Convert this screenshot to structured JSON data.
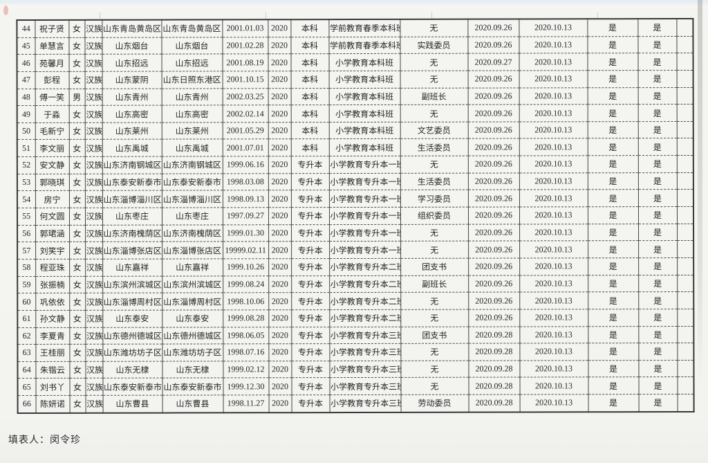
{
  "document": {
    "footer": {
      "filled_by_label": "填表人：闵令珍"
    },
    "table": {
      "rows": [
        [
          "44",
          "祝子贤",
          "女",
          "汉族",
          "山东青岛黄岛区",
          "山东青岛黄岛区",
          "2001.01.03",
          "2020",
          "本科",
          "学前教育春季本科班",
          "无",
          "2020.09.26",
          "2020.10.13",
          "是",
          "是",
          ""
        ],
        [
          "45",
          "单慧言",
          "女",
          "汉族",
          "山东烟台",
          "山东烟台",
          "2001.02.28",
          "2020",
          "本科",
          "学前教育春季本科班",
          "实践委员",
          "2020.09.26",
          "2020.10.13",
          "是",
          "是",
          ""
        ],
        [
          "46",
          "苑馨月",
          "女",
          "汉族",
          "山东招远",
          "山东招远",
          "2001.08.19",
          "2020",
          "本科",
          "小学教育本科班",
          "无",
          "2020.09.27",
          "2020.10.13",
          "是",
          "是",
          ""
        ],
        [
          "47",
          "彭程",
          "女",
          "汉族",
          "山东蒙阴",
          "山东日照东港区",
          "2001.10.15",
          "2020",
          "本科",
          "小学教育本科班",
          "无",
          "2020.09.26",
          "2020.10.13",
          "是",
          "是",
          ""
        ],
        [
          "48",
          "傅一笑",
          "男",
          "汉族",
          "山东青州",
          "山东青州",
          "2002.03.25",
          "2020",
          "本科",
          "小学教育本科班",
          "副班长",
          "2020.09.26",
          "2020.10.13",
          "是",
          "是",
          ""
        ],
        [
          "49",
          "于淼",
          "女",
          "汉族",
          "山东高密",
          "山东高密",
          "2002.02.14",
          "2020",
          "本科",
          "小学教育本科班",
          "无",
          "2020.09.26",
          "2020.10.13",
          "是",
          "是",
          ""
        ],
        [
          "50",
          "毛新宁",
          "女",
          "汉族",
          "山东莱州",
          "山东莱州",
          "2001.05.29",
          "2020",
          "本科",
          "小学教育本科班",
          "文艺委员",
          "2020.09.26",
          "2020.10.13",
          "是",
          "是",
          ""
        ],
        [
          "51",
          "李文丽",
          "女",
          "汉族",
          "山东禹城",
          "山东禹城",
          "2001.07.01",
          "2020",
          "本科",
          "小学教育本科班",
          "生活委员",
          "2020.09.26",
          "2020.10.13",
          "是",
          "是",
          ""
        ],
        [
          "52",
          "安文静",
          "女",
          "汉族",
          "山东济南钢城区",
          "山东济南钢城区",
          "1999.06.16",
          "2020",
          "专升本",
          "小学教育专升本一班",
          "无",
          "2020.09.26",
          "2020.10.13",
          "是",
          "是",
          ""
        ],
        [
          "53",
          "郭晓琪",
          "女",
          "汉族",
          "山东泰安新泰市",
          "山东泰安新泰市",
          "1998.03.08",
          "2020",
          "专升本",
          "小学教育专升本一班",
          "生活委员",
          "2020.09.26",
          "2020.10.13",
          "是",
          "是",
          ""
        ],
        [
          "54",
          "房宁",
          "女",
          "汉族",
          "山东淄博淄川区",
          "山东淄博淄川区",
          "1998.09.13",
          "2020",
          "专升本",
          "小学教育专升本一班",
          "学习委员",
          "2020.09.26",
          "2020.10.13",
          "是",
          "是",
          ""
        ],
        [
          "55",
          "何文圆",
          "女",
          "汉族",
          "山东枣庄",
          "山东枣庄",
          "1997.09.27",
          "2020",
          "专升本",
          "小学教育专升本一班",
          "组织委员",
          "2020.09.26",
          "2020.10.13",
          "是",
          "是",
          ""
        ],
        [
          "56",
          "郭珺涵",
          "女",
          "汉族",
          "山东济南槐荫区",
          "山东济南槐荫区",
          "1999.01.30",
          "2020",
          "专升本",
          "小学教育专升本一班",
          "无",
          "2020.09.26",
          "2020.10.13",
          "是",
          "是",
          ""
        ],
        [
          "57",
          "刘笑宇",
          "女",
          "汉族",
          "山东淄博张店区",
          "山东淄博张店区",
          "19999.02.11",
          "2020",
          "专升本",
          "小学教育专升本一班",
          "无",
          "2020.09.26",
          "2020.10.13",
          "是",
          "是",
          ""
        ],
        [
          "58",
          "程亚珠",
          "女",
          "汉族",
          "山东嘉祥",
          "山东嘉祥",
          "1999.10.26",
          "2020",
          "专升本",
          "小学教育专升本二班",
          "团支书",
          "2020.09.26",
          "2020.10.13",
          "是",
          "是",
          ""
        ],
        [
          "59",
          "张振楠",
          "女",
          "汉族",
          "山东滨州滨城区",
          "山东滨州滨城区",
          "1999.08.24",
          "2020",
          "专升本",
          "小学教育专升本二班",
          "副班长",
          "2020.09.26",
          "2020.10.13",
          "是",
          "是",
          ""
        ],
        [
          "60",
          "巩依依",
          "女",
          "汉族",
          "山东淄博周村区",
          "山东淄博周村区",
          "1998.10.06",
          "2020",
          "专升本",
          "小学教育专升本二班",
          "无",
          "2020.09.26",
          "2020.10.13",
          "是",
          "是",
          ""
        ],
        [
          "61",
          "孙文静",
          "女",
          "汉族",
          "山东泰安",
          "山东泰安",
          "1999.08.28",
          "2020",
          "专升本",
          "小学教育专升本二班",
          "无",
          "2020.09.26",
          "2020.10.13",
          "是",
          "是",
          ""
        ],
        [
          "62",
          "李夏青",
          "女",
          "汉族",
          "山东德州德城区",
          "山东德州德城区",
          "1998.06.05",
          "2020",
          "专升本",
          "小学教育专升本三班",
          "团支书",
          "2020.09.28",
          "2020.10.13",
          "是",
          "是",
          ""
        ],
        [
          "63",
          "王桂丽",
          "女",
          "汉族",
          "山东潍坊坊子区",
          "山东潍坊坊子区",
          "1998.07.16",
          "2020",
          "专升本",
          "小学教育专升本三班",
          "无",
          "2020.09.28",
          "2020.10.13",
          "是",
          "是",
          ""
        ],
        [
          "64",
          "朱锴云",
          "女",
          "汉族",
          "山东无棣",
          "山东无棣",
          "1999.02.12",
          "2020",
          "专升本",
          "小学教育专升本三班",
          "无",
          "2020.09.28",
          "2020.10.13",
          "是",
          "是",
          ""
        ],
        [
          "65",
          "刘书丫",
          "女",
          "汉族",
          "山东泰安新泰市",
          "山东泰安新泰市",
          "1999.12.30",
          "2020",
          "专升本",
          "小学教育专升本三班",
          "无",
          "2020.09.28",
          "2020.10.13",
          "是",
          "是",
          ""
        ],
        [
          "66",
          "陈妍诺",
          "女",
          "汉族",
          "山东曹县",
          "山东曹县",
          "1998.11.27",
          "2020",
          "专升本",
          "小学教育专升本三班",
          "劳动委员",
          "2020.09.28",
          "2020.10.13",
          "是",
          "是",
          ""
        ]
      ]
    }
  }
}
